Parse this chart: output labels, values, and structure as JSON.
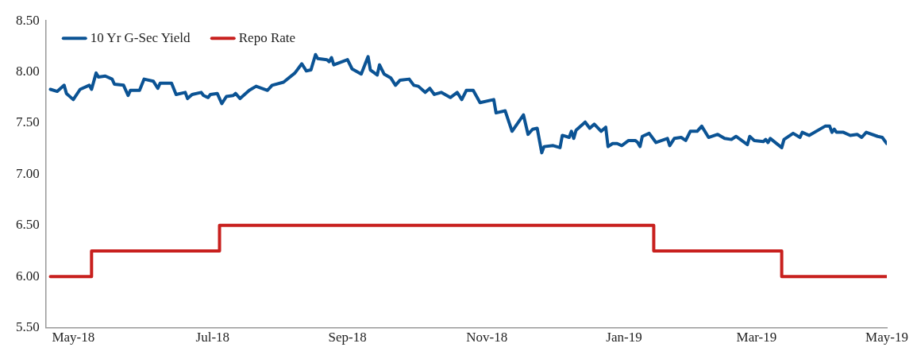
{
  "chart_data": {
    "type": "line",
    "xlim": [
      "2018-05-17",
      "2019-05-20"
    ],
    "xticks": [
      {
        "value": "2018-05-29",
        "label": "May-18"
      },
      {
        "value": "2018-07-29",
        "label": "Jul-18"
      },
      {
        "value": "2018-09-26",
        "label": "Sep-18"
      },
      {
        "value": "2018-11-26",
        "label": "Nov-18"
      },
      {
        "value": "2019-01-25",
        "label": "Jan-19"
      },
      {
        "value": "2019-03-24",
        "label": "Mar-19"
      },
      {
        "value": "2019-05-20",
        "label": "May-19"
      }
    ],
    "ylim": [
      5.5,
      8.5
    ],
    "yticks": [
      {
        "value": 5.5,
        "label": "5.50"
      },
      {
        "value": 6,
        "label": "6.00"
      },
      {
        "value": 6.5,
        "label": "6.50"
      },
      {
        "value": 7,
        "label": "7.00"
      },
      {
        "value": 7.5,
        "label": "7.50"
      },
      {
        "value": 8,
        "label": "8.00"
      },
      {
        "value": 8.5,
        "label": "8.50"
      }
    ],
    "grid": false,
    "legend": "top left",
    "marker": "none",
    "line_style": "solid",
    "series": [
      {
        "name": "10 Yr G-Sec Yield",
        "color": "#0b5394",
        "x": [
          "2018-05-19",
          "2018-05-22",
          "2018-05-25",
          "2018-05-26",
          "2018-05-29",
          "2018-06-01",
          "2018-06-05",
          "2018-06-06",
          "2018-06-08",
          "2018-06-09",
          "2018-06-12",
          "2018-06-15",
          "2018-06-16",
          "2018-06-20",
          "2018-06-22",
          "2018-06-23",
          "2018-06-27",
          "2018-06-29",
          "2018-07-03",
          "2018-07-05",
          "2018-07-06",
          "2018-07-11",
          "2018-07-13",
          "2018-07-17",
          "2018-07-18",
          "2018-07-20",
          "2018-07-24",
          "2018-07-25",
          "2018-07-27",
          "2018-07-28",
          "2018-07-31",
          "2018-08-02",
          "2018-08-04",
          "2018-08-07",
          "2018-08-08",
          "2018-08-10",
          "2018-08-14",
          "2018-08-17",
          "2018-08-22",
          "2018-08-24",
          "2018-08-29",
          "2018-09-03",
          "2018-09-06",
          "2018-09-08",
          "2018-09-10",
          "2018-09-12",
          "2018-09-13",
          "2018-09-17",
          "2018-09-18",
          "2018-09-19",
          "2018-09-20",
          "2018-09-26",
          "2018-09-28",
          "2018-10-02",
          "2018-10-05",
          "2018-10-06",
          "2018-10-09",
          "2018-10-10",
          "2018-10-12",
          "2018-10-15",
          "2018-10-17",
          "2018-10-19",
          "2018-10-23",
          "2018-10-25",
          "2018-10-27",
          "2018-10-30",
          "2018-11-01",
          "2018-11-03",
          "2018-11-06",
          "2018-11-10",
          "2018-11-13",
          "2018-11-15",
          "2018-11-17",
          "2018-11-20",
          "2018-11-23",
          "2018-11-29",
          "2018-11-30",
          "2018-12-04",
          "2018-12-07",
          "2018-12-12",
          "2018-12-14",
          "2018-12-16",
          "2018-12-18",
          "2018-12-20",
          "2018-12-21",
          "2018-12-25",
          "2018-12-28",
          "2018-12-29",
          "2019-01-01",
          "2019-01-02",
          "2019-01-03",
          "2019-01-04",
          "2019-01-08",
          "2019-01-10",
          "2019-01-12",
          "2019-01-15",
          "2019-01-17",
          "2019-01-18",
          "2019-01-20",
          "2019-01-22",
          "2019-01-24",
          "2019-01-27",
          "2019-01-30",
          "2019-01-31",
          "2019-02-01",
          "2019-02-02",
          "2019-02-05",
          "2019-02-08",
          "2019-02-13",
          "2019-02-14",
          "2019-02-16",
          "2019-02-19",
          "2019-02-21",
          "2019-02-23",
          "2019-02-26",
          "2019-02-28",
          "2019-03-03",
          "2019-03-07",
          "2019-03-10",
          "2019-03-13",
          "2019-03-15",
          "2019-03-20",
          "2019-03-21",
          "2019-03-23",
          "2019-03-27",
          "2019-03-28",
          "2019-03-29",
          "2019-03-30",
          "2019-04-04",
          "2019-04-05",
          "2019-04-09",
          "2019-04-12",
          "2019-04-13",
          "2019-04-16",
          "2019-04-23",
          "2019-04-25",
          "2019-04-26",
          "2019-04-27",
          "2019-04-28",
          "2019-05-01",
          "2019-05-04",
          "2019-05-07",
          "2019-05-09",
          "2019-05-11",
          "2019-05-16",
          "2019-05-18",
          "2019-05-20"
        ],
        "values": [
          7.83,
          7.81,
          7.87,
          7.79,
          7.73,
          7.83,
          7.87,
          7.83,
          7.99,
          7.95,
          7.96,
          7.93,
          7.88,
          7.87,
          7.77,
          7.82,
          7.82,
          7.93,
          7.91,
          7.84,
          7.89,
          7.89,
          7.78,
          7.8,
          7.74,
          7.78,
          7.8,
          7.77,
          7.75,
          7.78,
          7.79,
          7.69,
          7.76,
          7.77,
          7.79,
          7.74,
          7.82,
          7.86,
          7.82,
          7.87,
          7.9,
          7.99,
          8.08,
          8.01,
          8.02,
          8.17,
          8.13,
          8.12,
          8.1,
          8.14,
          8.07,
          8.12,
          8.03,
          7.98,
          8.15,
          8.02,
          7.97,
          8.07,
          7.98,
          7.94,
          7.87,
          7.92,
          7.93,
          7.87,
          7.86,
          7.8,
          7.84,
          7.78,
          7.8,
          7.75,
          7.8,
          7.73,
          7.82,
          7.82,
          7.7,
          7.73,
          7.6,
          7.62,
          7.42,
          7.58,
          7.39,
          7.44,
          7.45,
          7.21,
          7.27,
          7.28,
          7.26,
          7.38,
          7.36,
          7.42,
          7.35,
          7.43,
          7.51,
          7.45,
          7.49,
          7.42,
          7.46,
          7.27,
          7.3,
          7.3,
          7.28,
          7.33,
          7.33,
          7.31,
          7.27,
          7.37,
          7.4,
          7.31,
          7.35,
          7.28,
          7.35,
          7.36,
          7.33,
          7.42,
          7.42,
          7.47,
          7.36,
          7.39,
          7.35,
          7.34,
          7.37,
          7.29,
          7.37,
          7.33,
          7.32,
          7.34,
          7.31,
          7.35,
          7.26,
          7.34,
          7.4,
          7.36,
          7.41,
          7.38,
          7.47,
          7.47,
          7.41,
          7.44,
          7.41,
          7.41,
          7.38,
          7.39,
          7.36,
          7.41,
          7.37,
          7.36,
          7.3
        ]
      },
      {
        "name": "Repo Rate",
        "type": "step",
        "color": "#c8201e",
        "x": [
          "2018-05-19",
          "2018-06-06",
          "2018-08-01",
          "2019-02-07",
          "2019-04-04",
          "2019-05-20"
        ],
        "values": [
          6.0,
          6.25,
          6.5,
          6.25,
          6.0,
          6.0
        ]
      }
    ]
  }
}
